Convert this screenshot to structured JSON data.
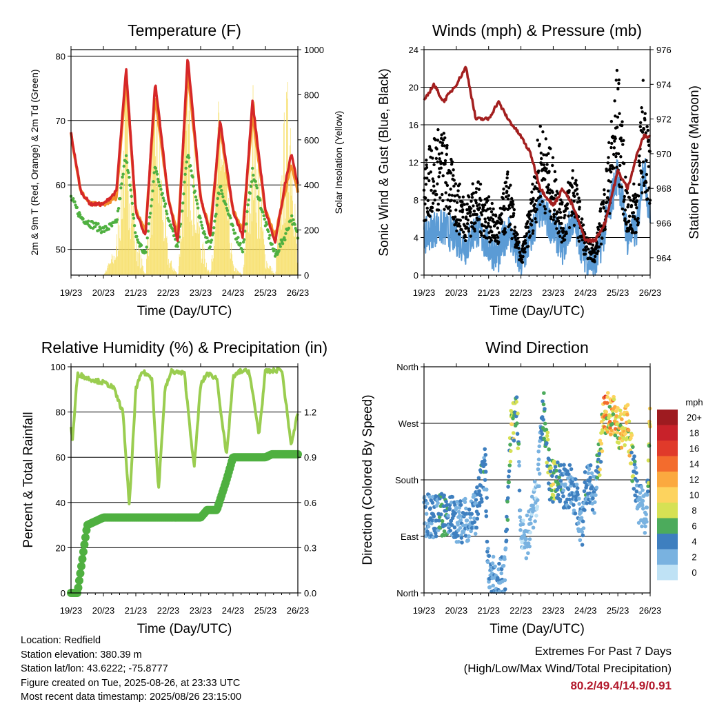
{
  "colors": {
    "temp2m": "#d62728",
    "temp9m": "#f28e2b",
    "dew": "#4fb040",
    "solar": "#f6dc5a",
    "wind": "#5b9bd5",
    "gust": "#000000",
    "pressure": "#a31f1f",
    "rh": "#9acd50",
    "precip": "#4fb040",
    "extreme_text": "#b2182b"
  },
  "x_ticks": [
    "19/23",
    "20/23",
    "21/23",
    "22/23",
    "23/23",
    "24/23",
    "25/23",
    "26/23"
  ],
  "xlabel": "Time (Day/UTC)",
  "chart_data": [
    {
      "type": "line",
      "title": "Temperature (F)",
      "xlabel": "Time (Day/UTC)",
      "ylabel": "2m & 9m T (Red, Orange) & 2m Td (Green)",
      "ylabel_right": "Solar Insolation (Yellow)",
      "ylim": [
        46,
        81
      ],
      "yticks": [
        50,
        60,
        70,
        80
      ],
      "ylim_right": [
        0,
        1000
      ],
      "yticks_right": [
        0,
        200,
        400,
        600,
        800,
        1000
      ],
      "x": [
        0,
        0.3,
        0.6,
        1.0,
        1.4,
        1.7,
        2.0,
        2.3,
        2.6,
        3.0,
        3.3,
        3.6,
        4.0,
        4.3,
        4.6,
        5.0,
        5.3,
        5.6,
        6.0,
        6.3,
        6.6,
        6.8,
        7.0
      ],
      "series": [
        {
          "values": [
            68,
            59,
            57,
            57,
            59,
            78,
            56,
            52,
            76,
            58,
            51,
            80,
            58,
            52,
            70,
            56,
            52,
            73,
            56,
            51,
            60,
            65,
            60
          ]
        },
        {
          "values": [
            68,
            59,
            57,
            57,
            58,
            77,
            56,
            53,
            74,
            58,
            52,
            78,
            58,
            53,
            69,
            56,
            53,
            71,
            56,
            52,
            59,
            63,
            59
          ]
        },
        {
          "values": [
            58,
            55,
            54,
            53,
            54,
            65,
            52,
            49,
            63,
            55,
            50,
            65,
            54,
            50,
            60,
            53,
            50,
            62,
            54,
            49,
            52,
            55,
            52
          ]
        },
        {
          "values": [
            0,
            0,
            0,
            0,
            150,
            1000,
            200,
            0,
            950,
            100,
            0,
            1000,
            200,
            0,
            950,
            50,
            0,
            950,
            100,
            0,
            800,
            1000,
            0
          ]
        }
      ]
    },
    {
      "type": "scatter",
      "title": "Winds (mph) & Pressure (mb)",
      "xlabel": "Time (Day/UTC)",
      "ylabel": "Sonic Wind & Gust (Blue, Black)",
      "ylabel_right": "Station Pressure (Maroon)",
      "ylim": [
        0,
        24
      ],
      "yticks": [
        0,
        4,
        8,
        12,
        16,
        20,
        24
      ],
      "ylim_right": [
        963,
        976
      ],
      "yticks_right": [
        964,
        966,
        968,
        970,
        972,
        974,
        976
      ],
      "x": [
        0,
        0.3,
        0.6,
        1.0,
        1.3,
        1.6,
        2.0,
        2.3,
        2.6,
        3.0,
        3.3,
        3.6,
        4.0,
        4.3,
        4.6,
        5.0,
        5.3,
        5.6,
        6.0,
        6.3,
        6.6,
        6.8,
        7.0
      ],
      "series": [
        {
          "values": [
            4,
            5,
            5,
            4,
            3,
            5,
            3,
            2,
            5,
            1,
            4,
            7,
            5,
            3,
            6,
            2,
            1,
            5,
            11,
            4,
            5,
            12,
            6
          ]
        },
        {
          "values": [
            11,
            15,
            15,
            10,
            8,
            10,
            8,
            6,
            11,
            2,
            8,
            16,
            12,
            7,
            12,
            4,
            3,
            10,
            22,
            8,
            10,
            21,
            13
          ]
        },
        {
          "values": [
            973,
            974,
            973,
            974,
            975,
            972,
            972,
            973,
            972,
            971,
            970,
            968,
            967,
            968,
            967,
            965,
            965,
            966,
            969,
            968,
            970,
            971,
            971
          ]
        }
      ]
    },
    {
      "type": "line",
      "title": "Relative Humidity (%) & Precipitation (in)",
      "xlabel": "Time (Day/UTC)",
      "ylabel": "Percent & Total Rainfall",
      "ylim": [
        0,
        100
      ],
      "yticks": [
        0,
        20,
        40,
        60,
        80,
        100
      ],
      "ylim_right": [
        0,
        1.5
      ],
      "yticks_right": [
        0.0,
        0.3,
        0.6,
        0.9,
        1.2
      ],
      "x": [
        0,
        0.05,
        0.2,
        0.5,
        1.0,
        1.3,
        1.6,
        1.8,
        2.0,
        2.2,
        2.5,
        2.7,
        2.9,
        3.1,
        3.5,
        3.8,
        4.0,
        4.2,
        4.5,
        4.8,
        5.0,
        5.2,
        5.5,
        5.8,
        6.0,
        6.2,
        6.5,
        6.8,
        7.0
      ],
      "series": [
        {
          "values": [
            73,
            68,
            97,
            95,
            93,
            91,
            80,
            38,
            90,
            98,
            95,
            45,
            90,
            98,
            97,
            55,
            92,
            97,
            95,
            60,
            95,
            98,
            98,
            70,
            98,
            98,
            99,
            65,
            80
          ]
        },
        {
          "values": [
            0,
            0,
            0,
            0.45,
            0.5,
            0.5,
            0.5,
            0.5,
            0.5,
            0.5,
            0.5,
            0.5,
            0.5,
            0.5,
            0.5,
            0.5,
            0.5,
            0.55,
            0.55,
            0.75,
            0.9,
            0.9,
            0.9,
            0.9,
            0.9,
            0.92,
            0.92,
            0.92,
            0.92
          ]
        }
      ]
    },
    {
      "type": "scatter",
      "title": "Wind Direction",
      "xlabel": "Time (Day/UTC)",
      "ylabel": "Direction (Colored By Speed)",
      "ylim": [
        0,
        360
      ],
      "ytick_labels": [
        "North",
        "East",
        "South",
        "West",
        "North"
      ],
      "yticks": [
        0,
        90,
        180,
        270,
        360
      ],
      "legend": {
        "title": "mph",
        "labels": [
          "20+",
          "18",
          "16",
          "14",
          "12",
          "10",
          "8",
          "6",
          "4",
          "2",
          "0"
        ],
        "colors": [
          "#9e1b20",
          "#c8222a",
          "#e03a2a",
          "#f36c2d",
          "#fba93f",
          "#fdd35e",
          "#d6e154",
          "#4cab5c",
          "#3e7fbf",
          "#79b2e0",
          "#bfe2f5"
        ]
      },
      "x": [
        0,
        0.3,
        0.6,
        0.9,
        1.0,
        1.3,
        1.6,
        1.9,
        2.0,
        2.2,
        2.5,
        2.7,
        2.9,
        3.0,
        3.2,
        3.5,
        3.7,
        3.9,
        4.0,
        4.3,
        4.6,
        4.9,
        5.0,
        5.3,
        5.6,
        5.9,
        6.0,
        6.3,
        6.6,
        6.9,
        7.0
      ],
      "y": [
        125,
        120,
        125,
        120,
        115,
        115,
        125,
        200,
        30,
        20,
        25,
        270,
        280,
        80,
        90,
        160,
        290,
        180,
        180,
        170,
        170,
        100,
        180,
        160,
        290,
        280,
        260,
        270,
        150,
        120,
        280
      ],
      "speed": [
        3,
        4,
        6,
        4,
        3,
        3,
        4,
        5,
        3,
        4,
        3,
        8,
        7,
        1,
        2,
        1,
        6,
        7,
        8,
        4,
        4,
        3,
        5,
        3,
        13,
        12,
        10,
        12,
        3,
        2,
        12
      ]
    }
  ],
  "info": {
    "location": "Location: Redfield",
    "elevation": "Station elevation: 380.39 m",
    "latlon": "Station lat/lon: 43.6222; -75.8777",
    "created": "Figure created on Tue, 2025-08-26, at 23:33 UTC",
    "recent": "Most recent data timestamp: 2025/08/26 23:15:00"
  },
  "extremes": {
    "line1": "Extremes For Past 7 Days",
    "line2": "(High/Low/Max Wind/Total Precipitation)",
    "values": "80.2/49.4/14.9/0.91"
  }
}
